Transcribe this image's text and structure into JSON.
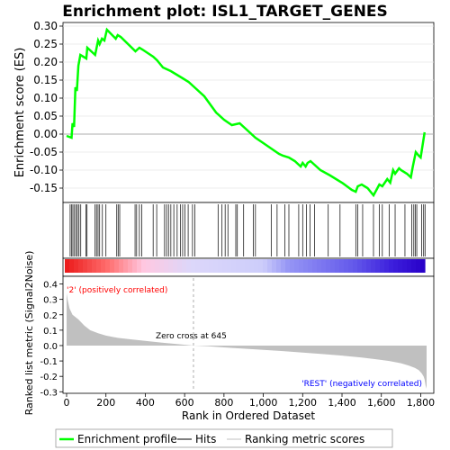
{
  "chart_data": {
    "type": "line",
    "title": "Enrichment plot: ISL1_TARGET_GENES",
    "n_genes": 1830,
    "zero_cross_rank": 645,
    "zero_cross_label": "Zero cross at 645",
    "pos_label": "'2' (positively correlated)",
    "neg_label": "'REST' (negatively correlated)",
    "xlabel": "Rank in Ordered Dataset",
    "x_ticks": [
      0,
      200,
      400,
      600,
      800,
      1000,
      1200,
      1400,
      1600,
      1800
    ],
    "x_tick_labels": [
      "0",
      "200",
      "400",
      "600",
      "800",
      "1,000",
      "1,200",
      "1,400",
      "1,600",
      "1,800"
    ],
    "es_panel": {
      "ylabel": "Enrichment score (ES)",
      "ylim": [
        -0.19,
        0.31
      ],
      "yticks": [
        -0.15,
        -0.1,
        -0.05,
        0.0,
        0.05,
        0.1,
        0.15,
        0.2,
        0.25,
        0.3
      ],
      "ytick_labels": [
        "-0.15",
        "-0.10",
        "-0.05",
        "0.00",
        "0.05",
        "0.10",
        "0.15",
        "0.20",
        "0.25",
        "0.30"
      ],
      "color": "#00ff00",
      "x": [
        0,
        25,
        30,
        38,
        45,
        52,
        60,
        70,
        100,
        105,
        145,
        160,
        168,
        180,
        192,
        205,
        250,
        260,
        275,
        350,
        370,
        385,
        440,
        460,
        490,
        530,
        560,
        590,
        620,
        650,
        700,
        760,
        800,
        840,
        880,
        920,
        960,
        1000,
        1040,
        1080,
        1100,
        1130,
        1160,
        1190,
        1200,
        1215,
        1225,
        1240,
        1260,
        1290,
        1340,
        1400,
        1450,
        1470,
        1480,
        1500,
        1530,
        1560,
        1575,
        1590,
        1605,
        1630,
        1645,
        1660,
        1670,
        1690,
        1700,
        1730,
        1750,
        1760,
        1775,
        1790,
        1800,
        1810,
        1820
      ],
      "y": [
        -0.005,
        -0.01,
        0.03,
        0.02,
        0.13,
        0.12,
        0.19,
        0.22,
        0.21,
        0.24,
        0.22,
        0.26,
        0.25,
        0.265,
        0.26,
        0.29,
        0.265,
        0.275,
        0.27,
        0.23,
        0.24,
        0.235,
        0.215,
        0.205,
        0.185,
        0.175,
        0.165,
        0.155,
        0.145,
        0.13,
        0.105,
        0.06,
        0.04,
        0.025,
        0.03,
        0.01,
        -0.01,
        -0.025,
        -0.04,
        -0.055,
        -0.06,
        -0.065,
        -0.075,
        -0.09,
        -0.08,
        -0.09,
        -0.08,
        -0.075,
        -0.085,
        -0.1,
        -0.115,
        -0.135,
        -0.155,
        -0.16,
        -0.145,
        -0.14,
        -0.15,
        -0.17,
        -0.155,
        -0.14,
        -0.145,
        -0.125,
        -0.135,
        -0.1,
        -0.11,
        -0.095,
        -0.1,
        -0.11,
        -0.12,
        -0.09,
        -0.05,
        -0.06,
        -0.065,
        -0.03,
        0.005
      ]
    },
    "hits": [
      18,
      26,
      32,
      40,
      48,
      55,
      63,
      72,
      98,
      104,
      145,
      152,
      160,
      168,
      182,
      200,
      255,
      262,
      270,
      348,
      356,
      370,
      382,
      440,
      458,
      498,
      508,
      518,
      530,
      545,
      562,
      578,
      590,
      602,
      618,
      640,
      652,
      770,
      790,
      806,
      820,
      860,
      868,
      900,
      950,
      960,
      1040,
      1070,
      1110,
      1130,
      1180,
      1200,
      1220,
      1238,
      1260,
      1330,
      1390,
      1470,
      1480,
      1505,
      1560,
      1590,
      1605,
      1640,
      1670,
      1720,
      1755,
      1765,
      1772,
      1780,
      1805,
      1815,
      1822
    ],
    "metric_panel": {
      "ylabel": "Ranked list metric (Signal2Noise)",
      "ylim": [
        -0.31,
        0.45
      ],
      "yticks": [
        -0.3,
        -0.2,
        -0.1,
        0.0,
        0.1,
        0.2,
        0.3,
        0.4
      ],
      "ytick_labels": [
        "-0.3",
        "-0.2",
        "-0.1",
        "0.0",
        "0.1",
        "0.2",
        "0.3",
        "0.4"
      ],
      "x": [
        0,
        5,
        15,
        30,
        60,
        90,
        120,
        160,
        200,
        260,
        330,
        400,
        480,
        560,
        645,
        720,
        800,
        900,
        1000,
        1100,
        1200,
        1300,
        1400,
        1500,
        1580,
        1640,
        1700,
        1740,
        1770,
        1790,
        1805,
        1815,
        1820,
        1825,
        1830
      ],
      "values": [
        0.34,
        0.3,
        0.24,
        0.2,
        0.17,
        0.13,
        0.1,
        0.08,
        0.065,
        0.05,
        0.04,
        0.03,
        0.02,
        0.01,
        0.0,
        -0.005,
        -0.012,
        -0.02,
        -0.028,
        -0.036,
        -0.045,
        -0.055,
        -0.065,
        -0.078,
        -0.09,
        -0.1,
        -0.115,
        -0.13,
        -0.145,
        -0.16,
        -0.18,
        -0.2,
        -0.22,
        -0.26,
        -0.28
      ]
    },
    "legend": {
      "position": "bottom",
      "entries": [
        "Enrichment profile",
        "Hits",
        "Ranking metric scores"
      ]
    }
  }
}
